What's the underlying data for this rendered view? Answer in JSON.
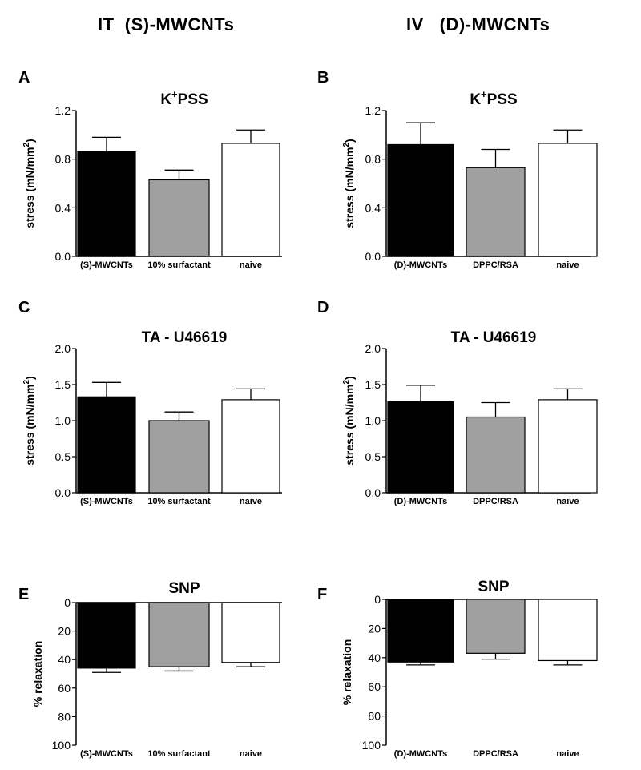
{
  "headers": {
    "left": "IT  (S)-MWCNTs",
    "right": "IV   (D)-MWCNTs"
  },
  "colors": {
    "black": "#000000",
    "gray": "#a0a0a0",
    "white": "#ffffff"
  },
  "chart_data": [
    {
      "panel_letter": "A",
      "type": "bar",
      "title": "PSS",
      "title_prefix": "K",
      "title_sup": "+",
      "ylabel": "stress (mN/mm",
      "ylabel_sup": "2",
      "ylabel_suffix": ")",
      "ylim": [
        0,
        1.2
      ],
      "yticks": [
        "0.0",
        "0.4",
        "0.8",
        "1.2"
      ],
      "inverted": false,
      "categories": [
        "(S)-MWCNTs",
        "10% surfactant",
        "naive"
      ],
      "values": [
        0.86,
        0.63,
        0.93
      ],
      "errors": [
        0.12,
        0.08,
        0.11
      ],
      "fills": [
        "black",
        "gray",
        "white"
      ]
    },
    {
      "panel_letter": "B",
      "type": "bar",
      "title": "PSS",
      "title_prefix": "K",
      "title_sup": "+",
      "ylabel": "stress (mN/mm",
      "ylabel_sup": "2",
      "ylabel_suffix": ")",
      "ylim": [
        0,
        1.2
      ],
      "yticks": [
        "0.0",
        "0.4",
        "0.8",
        "1.2"
      ],
      "inverted": false,
      "categories": [
        "(D)-MWCNTs",
        "DPPC/RSA",
        "naive"
      ],
      "values": [
        0.92,
        0.73,
        0.93
      ],
      "errors": [
        0.18,
        0.15,
        0.11
      ],
      "fills": [
        "black",
        "gray",
        "white"
      ]
    },
    {
      "panel_letter": "C",
      "type": "bar",
      "title": "TA - U46619",
      "title_prefix": "",
      "title_sup": "",
      "ylabel": "stress (mN/mm",
      "ylabel_sup": "2",
      "ylabel_suffix": ")",
      "ylim": [
        0,
        2.0
      ],
      "yticks": [
        "0.0",
        "0.5",
        "1.0",
        "1.5",
        "2.0"
      ],
      "inverted": false,
      "categories": [
        "(S)-MWCNTs",
        "10% surfactant",
        "naive"
      ],
      "values": [
        1.33,
        1.0,
        1.29
      ],
      "errors": [
        0.2,
        0.12,
        0.15
      ],
      "fills": [
        "black",
        "gray",
        "white"
      ]
    },
    {
      "panel_letter": "D",
      "type": "bar",
      "title": "TA - U46619",
      "title_prefix": "",
      "title_sup": "",
      "ylabel": "stress (mN/mm",
      "ylabel_sup": "2",
      "ylabel_suffix": ")",
      "ylim": [
        0,
        2.0
      ],
      "yticks": [
        "0.0",
        "0.5",
        "1.0",
        "1.5",
        "2.0"
      ],
      "inverted": false,
      "categories": [
        "(D)-MWCNTs",
        "DPPC/RSA",
        "naive"
      ],
      "values": [
        1.26,
        1.05,
        1.29
      ],
      "errors": [
        0.23,
        0.2,
        0.15
      ],
      "fills": [
        "black",
        "gray",
        "white"
      ]
    },
    {
      "panel_letter": "E",
      "type": "bar",
      "title": "SNP",
      "title_prefix": "",
      "title_sup": "",
      "ylabel": "% relaxation",
      "ylabel_sup": "",
      "ylabel_suffix": "",
      "ylim": [
        0,
        100
      ],
      "yticks": [
        "0",
        "20",
        "40",
        "60",
        "80",
        "100"
      ],
      "inverted": true,
      "categories": [
        "(S)-MWCNTs",
        "10% surfactant",
        "naive"
      ],
      "values": [
        46,
        45,
        42
      ],
      "errors": [
        3,
        3,
        3
      ],
      "fills": [
        "black",
        "gray",
        "white"
      ]
    },
    {
      "panel_letter": "F",
      "type": "bar",
      "title": "SNP",
      "title_prefix": "",
      "title_sup": "",
      "ylabel": "% relaxation",
      "ylabel_sup": "",
      "ylabel_suffix": "",
      "ylim": [
        0,
        100
      ],
      "yticks": [
        "0",
        "20",
        "40",
        "60",
        "80",
        "100"
      ],
      "inverted": true,
      "categories": [
        "(D)-MWCNTs",
        "DPPC/RSA",
        "naive"
      ],
      "values": [
        43,
        37,
        42
      ],
      "errors": [
        2,
        4,
        3
      ],
      "fills": [
        "black",
        "gray",
        "white"
      ]
    }
  ]
}
